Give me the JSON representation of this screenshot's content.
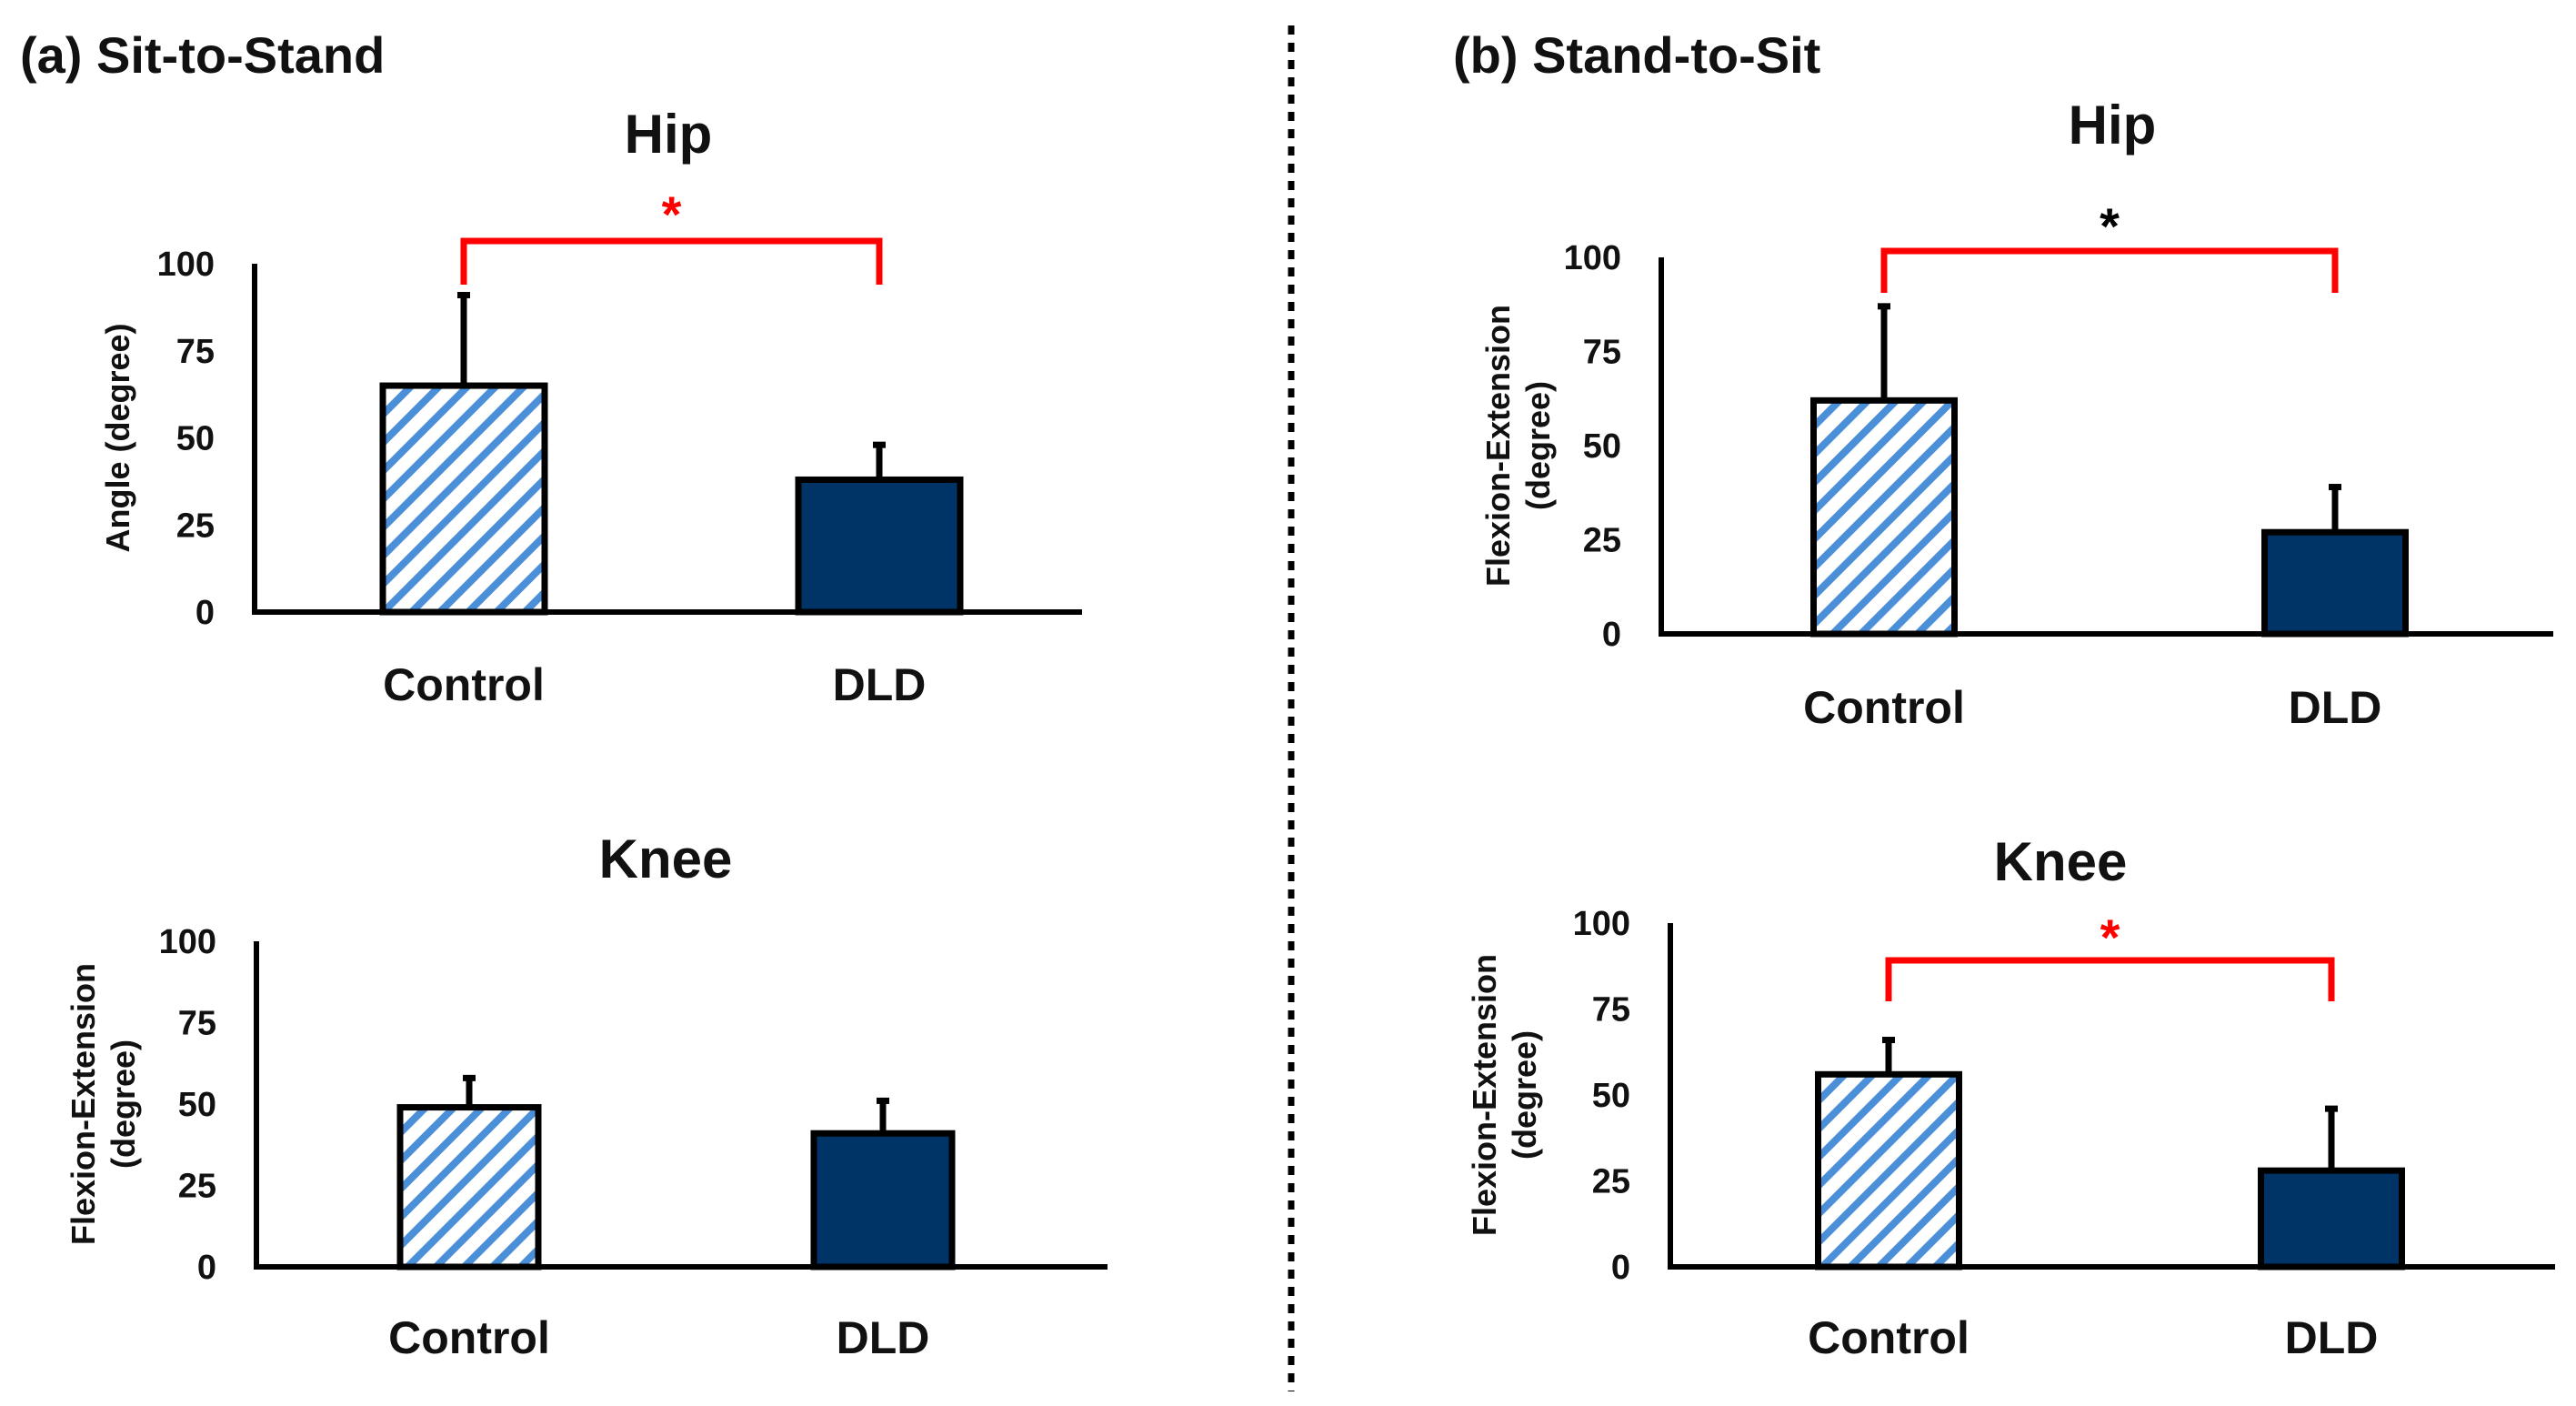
{
  "panels": {
    "a": {
      "label": "(a) Sit-to-Stand"
    },
    "b": {
      "label": "(b) Stand-to-Sit"
    }
  },
  "colors": {
    "control_hatch": "#4a8fd8",
    "dld_fill": "#003366",
    "axis": "#000000",
    "sig_red": "#ff0000",
    "sig_black": "#000000"
  },
  "chart_data": [
    {
      "id": "sts-hip",
      "panel": "a",
      "type": "bar",
      "title": "Hip",
      "categories": [
        "Control",
        "DLD"
      ],
      "values": [
        65,
        38
      ],
      "errors": [
        26,
        10
      ],
      "ylabel": "Angle (degree)",
      "ylim": [
        0,
        100
      ],
      "yticks": [
        "0",
        "25",
        "50",
        "75",
        "100"
      ],
      "significance": {
        "marker": "*",
        "color": "red"
      }
    },
    {
      "id": "sts-knee",
      "panel": "a",
      "type": "bar",
      "title": "Knee",
      "categories": [
        "Control",
        "DLD"
      ],
      "values": [
        49,
        41
      ],
      "errors": [
        9,
        10
      ],
      "ylabel": "Flexion-Extension (degree)",
      "ylim": [
        0,
        100
      ],
      "yticks": [
        "0",
        "25",
        "50",
        "75",
        "100"
      ],
      "significance": null
    },
    {
      "id": "sit-hip",
      "panel": "b",
      "type": "bar",
      "title": "Hip",
      "categories": [
        "Control",
        "DLD"
      ],
      "values": [
        62,
        27
      ],
      "errors": [
        25,
        12
      ],
      "ylabel": "Flexion-Extension (degree)",
      "ylim": [
        0,
        100
      ],
      "yticks": [
        "0",
        "25",
        "50",
        "75",
        "100"
      ],
      "significance": {
        "marker": "*",
        "color": "black"
      }
    },
    {
      "id": "sit-knee",
      "panel": "b",
      "type": "bar",
      "title": "Knee",
      "categories": [
        "Control",
        "DLD"
      ],
      "values": [
        56,
        28
      ],
      "errors": [
        10,
        18
      ],
      "ylabel": "Flexion-Extension (degree)",
      "ylim": [
        0,
        100
      ],
      "yticks": [
        "0",
        "25",
        "50",
        "75",
        "100"
      ],
      "significance": {
        "marker": "*",
        "color": "red"
      }
    }
  ]
}
